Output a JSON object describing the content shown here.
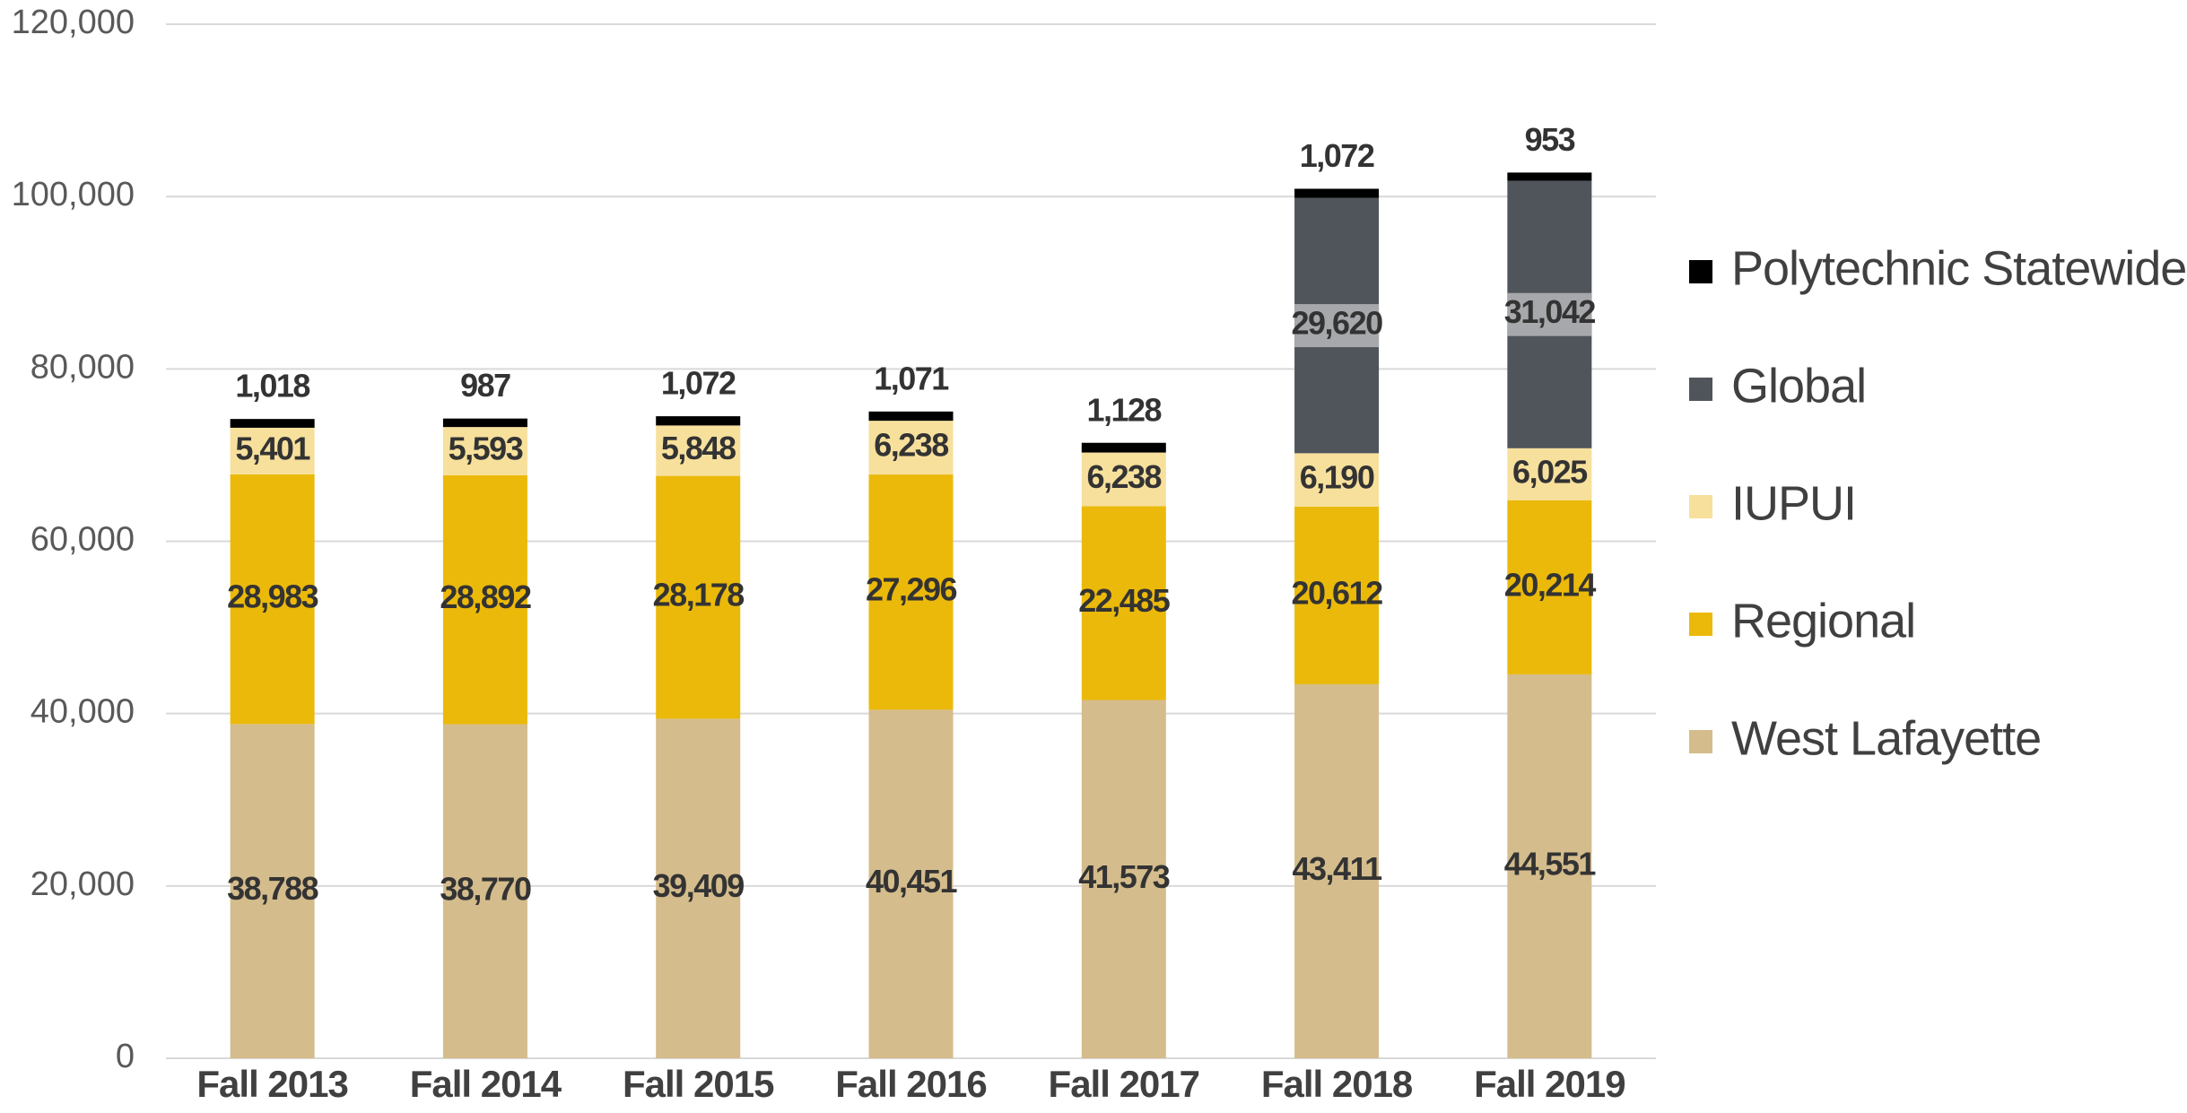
{
  "chart_data": {
    "type": "stacked_bar",
    "categories": [
      "Fall 2013",
      "Fall 2014",
      "Fall 2015",
      "Fall 2016",
      "Fall 2017",
      "Fall 2018",
      "Fall 2019"
    ],
    "series": [
      {
        "name": "West Lafayette",
        "color": "#d4bc8c",
        "values": [
          38788,
          38770,
          39409,
          40451,
          41573,
          43411,
          44551
        ],
        "value_labels": [
          "38,788",
          "38,770",
          "39,409",
          "40,451",
          "41,573",
          "43,411",
          "44,551"
        ]
      },
      {
        "name": "Regional",
        "color": "#ebb90a",
        "values": [
          28983,
          28892,
          28178,
          27296,
          22485,
          20612,
          20214
        ],
        "value_labels": [
          "28,983",
          "28,892",
          "28,178",
          "27,296",
          "22,485",
          "20,612",
          "20,214"
        ]
      },
      {
        "name": "IUPUI",
        "color": "#f7e09c",
        "values": [
          5401,
          5593,
          5848,
          6238,
          6238,
          6190,
          6025
        ],
        "value_labels": [
          "5,401",
          "5,593",
          "5,848",
          "6,238",
          "6,238",
          "6,190",
          "6,025"
        ]
      },
      {
        "name": "Global",
        "color": "#50555c",
        "values": [
          null,
          null,
          null,
          null,
          null,
          29620,
          31042
        ],
        "value_labels": [
          null,
          null,
          null,
          null,
          null,
          "29,620",
          "31,042"
        ]
      },
      {
        "name": "Polytechnic Statewide",
        "color": "#000000",
        "values": [
          1018,
          987,
          1072,
          1071,
          1128,
          1072,
          953
        ],
        "value_labels": [
          "1,018",
          "987",
          "1,072",
          "1,071",
          "1,128",
          "1,072",
          "953"
        ]
      }
    ],
    "ylim": [
      0,
      120000
    ],
    "yticks": [
      0,
      {
        "value": 20000,
        "label": "20,000"
      },
      {
        "value": 40000,
        "label": "40,000"
      },
      {
        "value": 60000,
        "label": "60,000"
      },
      {
        "value": 80000,
        "label": "80,000"
      },
      {
        "value": 100000,
        "label": "100,000"
      },
      {
        "value": 120000,
        "label": "120,000"
      }
    ],
    "grid": true,
    "legend": "right"
  }
}
